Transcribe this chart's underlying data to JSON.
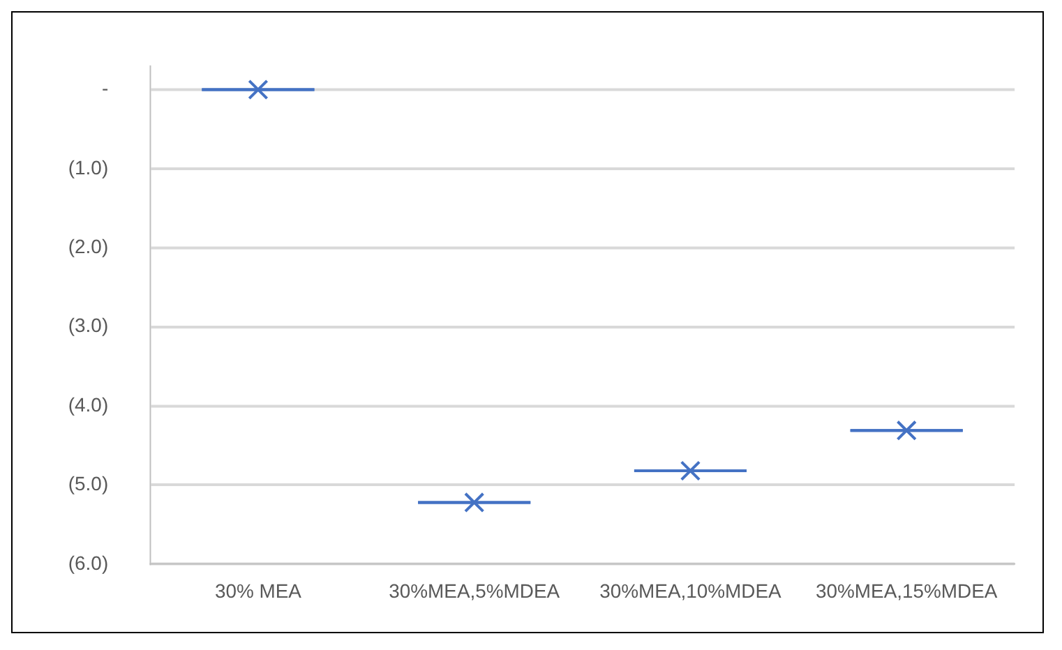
{
  "chart_data": {
    "type": "box",
    "categories": [
      "30% MEA",
      "30%MEA,5%MDEA",
      "30%MEA,10%MDEA",
      "30%MEA,15%MDEA"
    ],
    "series": [
      {
        "color": "#4472c4",
        "boxes": [
          {
            "low": 0,
            "q1": 0,
            "median": 0,
            "q3": 0,
            "high": 0,
            "mean": 0
          },
          {
            "low": -5.22,
            "q1": -5.22,
            "median": -5.22,
            "q3": -5.22,
            "high": -5.22,
            "mean": -5.22
          },
          {
            "low": -4.82,
            "q1": -4.82,
            "median": -4.82,
            "q3": -4.82,
            "high": -4.82,
            "mean": -4.82
          },
          {
            "low": -4.31,
            "q1": -4.31,
            "median": -4.31,
            "q3": -4.31,
            "high": -4.31,
            "mean": -4.31
          }
        ]
      }
    ],
    "ylim": [
      -6,
      0.3
    ],
    "yticks": [
      {
        "value": 0,
        "label": "-"
      },
      {
        "value": -1,
        "label": "(1.0)"
      },
      {
        "value": -2,
        "label": "(2.0)"
      },
      {
        "value": -3,
        "label": "(3.0)"
      },
      {
        "value": -4,
        "label": "(4.0)"
      },
      {
        "value": -5,
        "label": "(5.0)"
      },
      {
        "value": -6,
        "label": "(6.0)"
      }
    ],
    "grid": "y"
  }
}
